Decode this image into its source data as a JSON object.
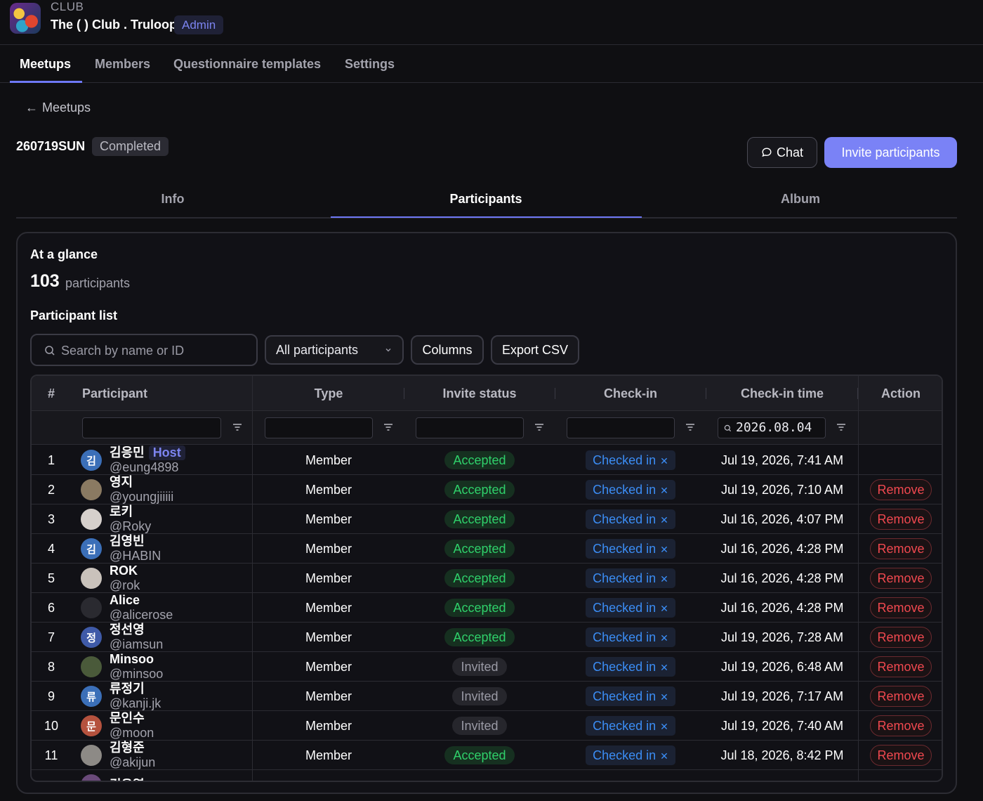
{
  "header": {
    "kicker": "CLUB",
    "club_name": "The ( ) Club . Truloop",
    "role_badge": "Admin"
  },
  "nav": {
    "items": [
      {
        "label": "Meetups",
        "active": true
      },
      {
        "label": "Members",
        "active": false
      },
      {
        "label": "Questionnaire templates",
        "active": false
      },
      {
        "label": "Settings",
        "active": false
      }
    ]
  },
  "meetup": {
    "back_label": "Meetups",
    "title": "260719SUN",
    "status": "Completed",
    "chat_label": "Chat",
    "invite_label": "Invite participants"
  },
  "subtabs": [
    {
      "label": "Info",
      "active": false
    },
    {
      "label": "Participants",
      "active": true
    },
    {
      "label": "Album",
      "active": false
    }
  ],
  "glance": {
    "title": "At a glance",
    "count": "103",
    "count_label": "participants"
  },
  "list": {
    "title": "Participant list",
    "search_placeholder": "Search by name or ID",
    "filter_value": "All participants",
    "columns_label": "Columns",
    "export_label": "Export CSV"
  },
  "table": {
    "headers": {
      "index": "#",
      "participant": "Participant",
      "type": "Type",
      "invite_status": "Invite status",
      "checkin": "Check-in",
      "checkin_time": "Check-in time",
      "action": "Action"
    },
    "checkin_time_filter": "2026.08.04",
    "rows": [
      {
        "n": "1",
        "name": "김응민",
        "handle": "@eung4898",
        "host": "Host",
        "avatar": "김",
        "avatar_color": "#3b6fb8",
        "type": "Member",
        "invite": "Accepted",
        "checkin": "Checked in",
        "time": "Jul 19, 2026, 7:41 AM",
        "action": ""
      },
      {
        "n": "2",
        "name": "영지",
        "handle": "@youngjiiiii",
        "host": "",
        "avatar": "",
        "avatar_color": "#8a7a62",
        "type": "Member",
        "invite": "Accepted",
        "checkin": "Checked in",
        "time": "Jul 19, 2026, 7:10 AM",
        "action": "Remove"
      },
      {
        "n": "3",
        "name": "로키",
        "handle": "@Roky",
        "host": "",
        "avatar": "",
        "avatar_color": "#d6d0cc",
        "type": "Member",
        "invite": "Accepted",
        "checkin": "Checked in",
        "time": "Jul 16, 2026, 4:07 PM",
        "action": "Remove"
      },
      {
        "n": "4",
        "name": "김영빈",
        "handle": "@HABIN",
        "host": "",
        "avatar": "김",
        "avatar_color": "#3b6fb8",
        "type": "Member",
        "invite": "Accepted",
        "checkin": "Checked in",
        "time": "Jul 16, 2026, 4:28 PM",
        "action": "Remove"
      },
      {
        "n": "5",
        "name": "ROK",
        "handle": "@rok",
        "host": "",
        "avatar": "",
        "avatar_color": "#c9c2bb",
        "type": "Member",
        "invite": "Accepted",
        "checkin": "Checked in",
        "time": "Jul 16, 2026, 4:28 PM",
        "action": "Remove"
      },
      {
        "n": "6",
        "name": "Alice",
        "handle": "@alicerose",
        "host": "",
        "avatar": "",
        "avatar_color": "#2a2a30",
        "type": "Member",
        "invite": "Accepted",
        "checkin": "Checked in",
        "time": "Jul 16, 2026, 4:28 PM",
        "action": "Remove"
      },
      {
        "n": "7",
        "name": "정선영",
        "handle": "@iamsun",
        "host": "",
        "avatar": "정",
        "avatar_color": "#3f5aa8",
        "type": "Member",
        "invite": "Accepted",
        "checkin": "Checked in",
        "time": "Jul 19, 2026, 7:28 AM",
        "action": "Remove"
      },
      {
        "n": "8",
        "name": "Minsoo",
        "handle": "@minsoo",
        "host": "",
        "avatar": "",
        "avatar_color": "#4a5a3a",
        "type": "Member",
        "invite": "Invited",
        "checkin": "Checked in",
        "time": "Jul 19, 2026, 6:48 AM",
        "action": "Remove"
      },
      {
        "n": "9",
        "name": "류정기",
        "handle": "@kanji.jk",
        "host": "",
        "avatar": "류",
        "avatar_color": "#3b6fb8",
        "type": "Member",
        "invite": "Invited",
        "checkin": "Checked in",
        "time": "Jul 19, 2026, 7:17 AM",
        "action": "Remove"
      },
      {
        "n": "10",
        "name": "문인수",
        "handle": "@moon",
        "host": "",
        "avatar": "문",
        "avatar_color": "#b5523e",
        "type": "Member",
        "invite": "Invited",
        "checkin": "Checked in",
        "time": "Jul 19, 2026, 7:40 AM",
        "action": "Remove"
      },
      {
        "n": "11",
        "name": "김형준",
        "handle": "@akijun",
        "host": "",
        "avatar": "",
        "avatar_color": "#8d8a86",
        "type": "Member",
        "invite": "Accepted",
        "checkin": "Checked in",
        "time": "Jul 18, 2026, 8:42 PM",
        "action": "Remove"
      },
      {
        "n": "",
        "name": "김우열",
        "handle": "",
        "host": "",
        "avatar": "",
        "avatar_color": "#6a4a7a",
        "type": "",
        "invite": "",
        "checkin": "",
        "time": "",
        "action": ""
      }
    ]
  },
  "colors": {
    "accent": "#7a82f6",
    "accepted": "#2fd06a",
    "checked_in": "#3b8df5",
    "remove": "#f0484f"
  }
}
